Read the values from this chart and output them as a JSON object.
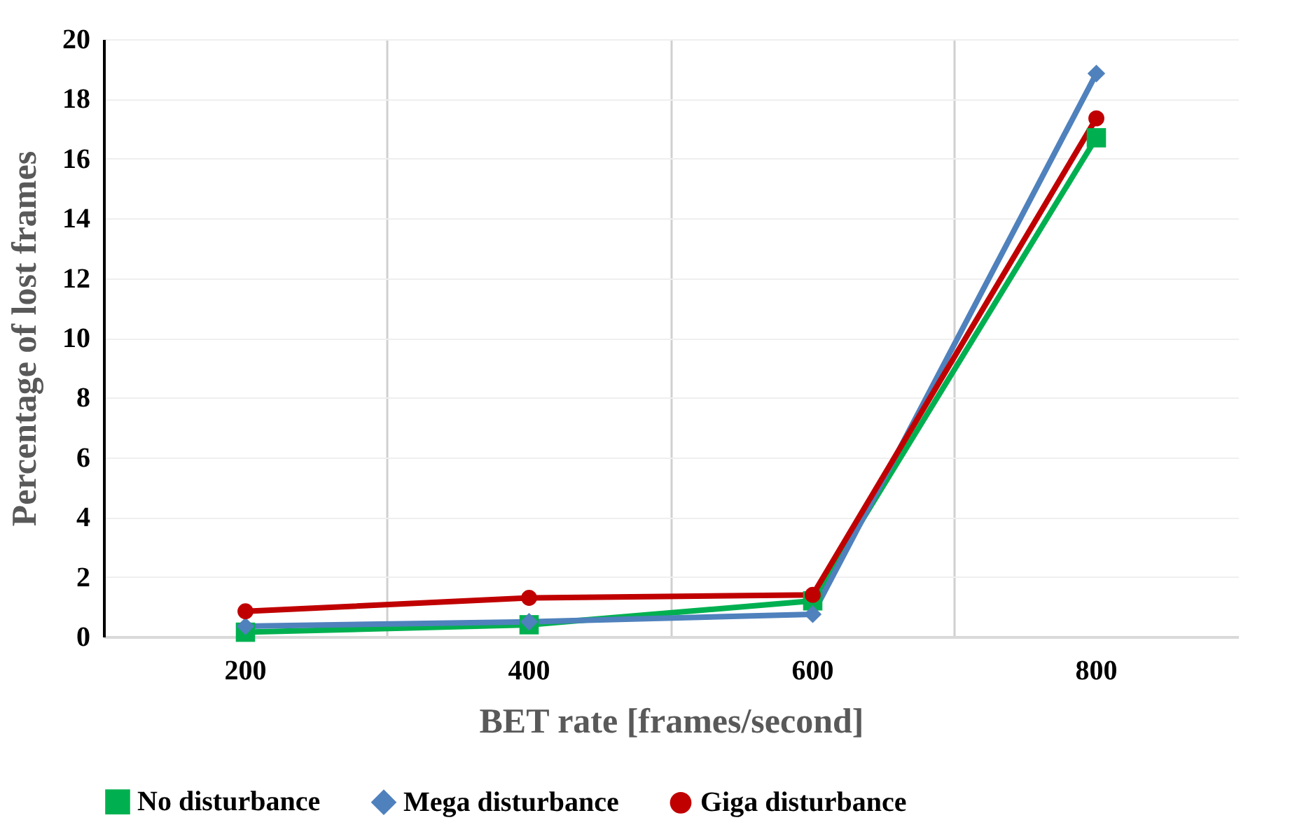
{
  "chart_data": {
    "type": "line",
    "xlabel": "BET rate [frames/second]",
    "ylabel": "Percentage of lost frames",
    "categories": [
      "200",
      "400",
      "600",
      "800"
    ],
    "series": [
      {
        "name": "No disturbance",
        "color": "#00b050",
        "marker": "square",
        "values": [
          0.15,
          0.4,
          1.2,
          16.7
        ]
      },
      {
        "name": "Mega disturbance",
        "color": "#4f81bd",
        "marker": "diamond",
        "values": [
          0.35,
          0.5,
          0.75,
          18.85
        ]
      },
      {
        "name": "Giga disturbance",
        "color": "#c00000",
        "marker": "circle",
        "values": [
          0.85,
          1.3,
          1.4,
          17.35
        ]
      }
    ],
    "ylim": [
      0,
      20
    ],
    "yticks": [
      0,
      2,
      4,
      6,
      8,
      10,
      12,
      14,
      16,
      18,
      20
    ],
    "grid": true,
    "legend": "bottom",
    "line_style": "solid"
  }
}
